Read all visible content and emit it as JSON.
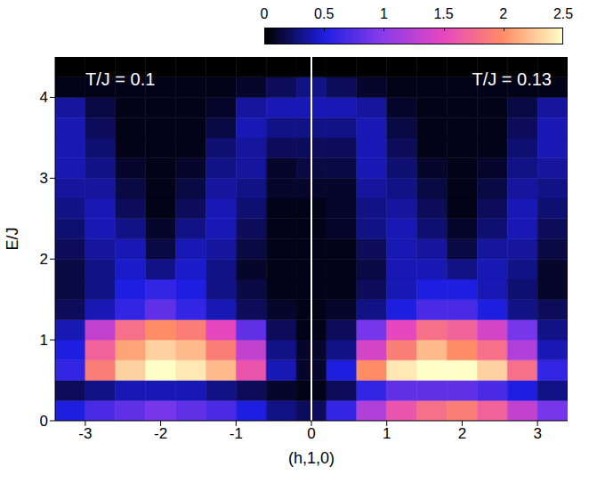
{
  "chart_data": {
    "type": "heatmap",
    "xlabel": "(h,1,0)",
    "ylabel": "E/J",
    "xlim": [
      -3.4,
      3.4
    ],
    "xticks": [
      -3,
      -2,
      -1,
      0,
      1,
      2,
      3
    ],
    "ylim": [
      0,
      4.5
    ],
    "yticks": [
      0,
      1,
      2,
      3,
      4
    ],
    "annotations": [
      "T/J = 0.1",
      "T/J = 0.13"
    ],
    "colorbar": {
      "range": [
        0,
        2.5
      ],
      "ticks": [
        0,
        0.5,
        1,
        1.5,
        2,
        2.5
      ]
    },
    "cells": {
      "h": [
        -3.2,
        -2.8,
        -2.4,
        -2.0,
        -1.6,
        -1.2,
        -0.8,
        -0.4,
        0.0,
        0.4,
        0.8,
        1.2,
        1.6,
        2.0,
        2.4,
        2.8,
        3.2
      ],
      "E": [
        0.125,
        0.375,
        0.625,
        0.875,
        1.125,
        1.375,
        1.625,
        1.875,
        2.125,
        2.375,
        2.625,
        2.875,
        3.125,
        3.375,
        3.625,
        3.875,
        4.125,
        4.375
      ],
      "z": [
        [
          0.5,
          0.7,
          0.8,
          0.9,
          0.8,
          0.7,
          0.5,
          0.3,
          0.2,
          0.6,
          1.2,
          1.6,
          1.8,
          1.9,
          1.7,
          1.3,
          0.9
        ],
        [
          0.2,
          0.3,
          0.4,
          0.4,
          0.4,
          0.3,
          0.2,
          0.1,
          0.05,
          0.2,
          0.6,
          0.8,
          0.8,
          0.8,
          0.7,
          0.5,
          0.3
        ],
        [
          0.6,
          1.9,
          2.3,
          2.5,
          2.4,
          2.2,
          1.6,
          0.4,
          0.1,
          0.5,
          2.0,
          2.4,
          2.5,
          2.5,
          2.3,
          1.8,
          0.6
        ],
        [
          0.5,
          1.7,
          2.1,
          2.3,
          2.2,
          1.9,
          1.3,
          0.3,
          0.1,
          0.3,
          1.4,
          1.9,
          2.2,
          2.0,
          1.8,
          1.2,
          0.4
        ],
        [
          0.4,
          1.3,
          1.8,
          2.0,
          1.9,
          1.5,
          0.8,
          0.2,
          0.05,
          0.2,
          0.9,
          1.5,
          1.8,
          1.7,
          1.4,
          0.9,
          0.3
        ],
        [
          0.2,
          0.4,
          0.6,
          0.8,
          0.6,
          0.4,
          0.2,
          0.1,
          0.05,
          0.1,
          0.3,
          0.5,
          0.7,
          0.7,
          0.5,
          0.3,
          0.2
        ],
        [
          0.15,
          0.3,
          0.5,
          0.6,
          0.5,
          0.3,
          0.15,
          0.05,
          0.05,
          0.05,
          0.2,
          0.4,
          0.5,
          0.5,
          0.4,
          0.25,
          0.1
        ],
        [
          0.15,
          0.3,
          0.45,
          0.3,
          0.45,
          0.3,
          0.1,
          0.05,
          0.05,
          0.05,
          0.15,
          0.4,
          0.4,
          0.3,
          0.4,
          0.3,
          0.1
        ],
        [
          0.2,
          0.35,
          0.4,
          0.15,
          0.4,
          0.35,
          0.15,
          0.05,
          0.05,
          0.05,
          0.2,
          0.4,
          0.35,
          0.15,
          0.35,
          0.35,
          0.15
        ],
        [
          0.25,
          0.4,
          0.3,
          0.1,
          0.3,
          0.4,
          0.2,
          0.05,
          0.05,
          0.1,
          0.3,
          0.4,
          0.25,
          0.1,
          0.25,
          0.4,
          0.2
        ],
        [
          0.3,
          0.4,
          0.2,
          0.05,
          0.2,
          0.4,
          0.25,
          0.05,
          0.05,
          0.1,
          0.3,
          0.35,
          0.2,
          0.05,
          0.2,
          0.4,
          0.25
        ],
        [
          0.35,
          0.35,
          0.15,
          0.05,
          0.15,
          0.35,
          0.3,
          0.1,
          0.1,
          0.1,
          0.35,
          0.3,
          0.15,
          0.05,
          0.15,
          0.35,
          0.3
        ],
        [
          0.4,
          0.3,
          0.1,
          0.05,
          0.1,
          0.3,
          0.35,
          0.1,
          0.15,
          0.15,
          0.4,
          0.25,
          0.1,
          0.05,
          0.1,
          0.3,
          0.35
        ],
        [
          0.4,
          0.25,
          0.05,
          0.05,
          0.05,
          0.25,
          0.35,
          0.2,
          0.2,
          0.2,
          0.4,
          0.2,
          0.05,
          0.05,
          0.05,
          0.25,
          0.4
        ],
        [
          0.4,
          0.2,
          0.05,
          0.05,
          0.05,
          0.15,
          0.4,
          0.3,
          0.3,
          0.3,
          0.4,
          0.15,
          0.05,
          0.05,
          0.05,
          0.2,
          0.4
        ],
        [
          0.35,
          0.15,
          0.05,
          0.05,
          0.05,
          0.1,
          0.35,
          0.4,
          0.4,
          0.4,
          0.35,
          0.1,
          0.05,
          0.05,
          0.05,
          0.15,
          0.35
        ],
        [
          0.05,
          0.05,
          0.05,
          0.05,
          0.05,
          0.05,
          0.1,
          0.2,
          0.3,
          0.2,
          0.1,
          0.05,
          0.05,
          0.05,
          0.05,
          0.05,
          0.05
        ],
        [
          0,
          0,
          0,
          0,
          0,
          0,
          0,
          0,
          0,
          0,
          0,
          0,
          0,
          0,
          0,
          0,
          0
        ]
      ]
    }
  }
}
